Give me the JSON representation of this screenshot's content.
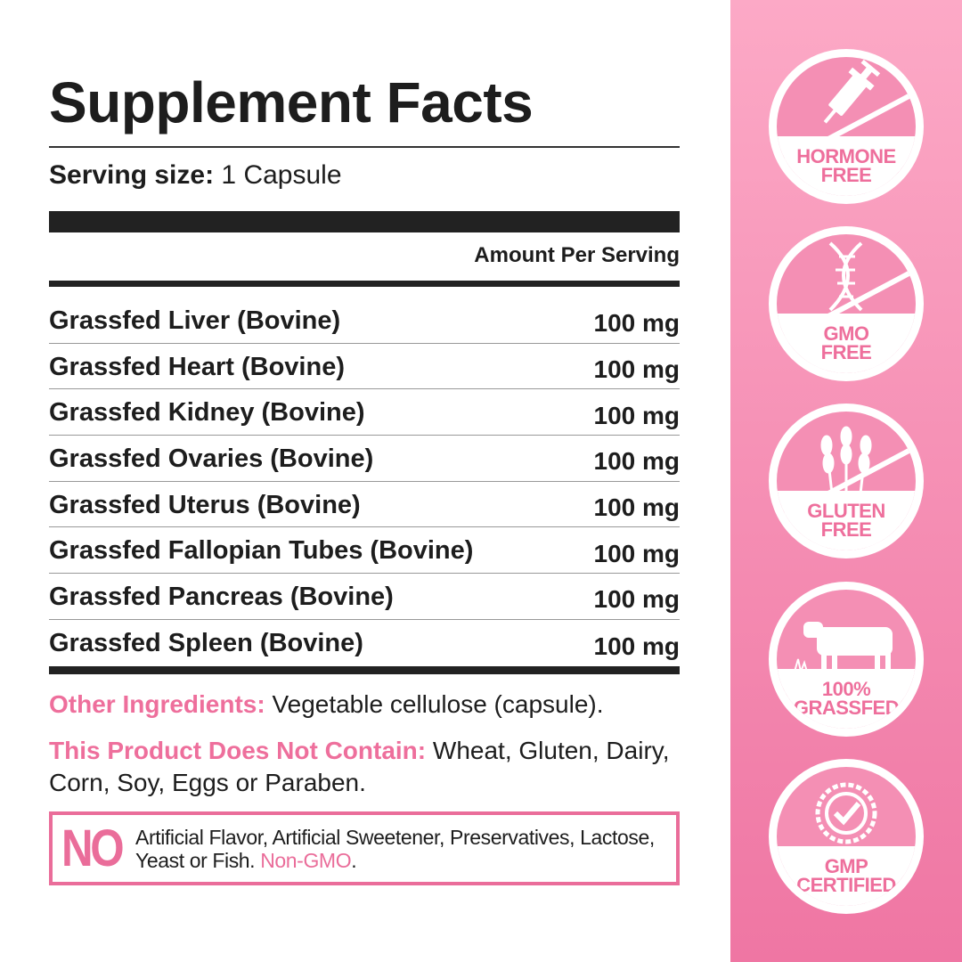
{
  "title": "Supplement Facts",
  "serving": {
    "label": "Serving size:",
    "value": "1 Capsule"
  },
  "amount_header": "Amount Per Serving",
  "ingredients": [
    {
      "name": "Grassfed Liver (Bovine)",
      "amount": "100 mg"
    },
    {
      "name": "Grassfed Heart (Bovine)",
      "amount": "100 mg"
    },
    {
      "name": "Grassfed Kidney (Bovine)",
      "amount": "100 mg"
    },
    {
      "name": "Grassfed Ovaries (Bovine)",
      "amount": "100 mg"
    },
    {
      "name": "Grassfed Uterus (Bovine)",
      "amount": "100 mg"
    },
    {
      "name": "Grassfed Fallopian Tubes (Bovine)",
      "amount": "100 mg"
    },
    {
      "name": "Grassfed Pancreas (Bovine)",
      "amount": "100 mg"
    },
    {
      "name": "Grassfed Spleen (Bovine)",
      "amount": "100 mg"
    }
  ],
  "other": {
    "label": "Other Ingredients:",
    "value": "Vegetable cellulose (capsule)."
  },
  "contain": {
    "label": "This Product Does Not Contain:",
    "value": "Wheat, Gluten, Dairy, Corn, Soy, Eggs or Paraben."
  },
  "no_box": {
    "no": "NO",
    "text": "Artificial Flavor, Artificial Sweetener, Preservatives, Lactose, Yeast or Fish.",
    "highlight": "Non-GMO",
    "end": "."
  },
  "badges": [
    {
      "line1": "HORMONE",
      "line2": "FREE",
      "icon": "syringe-icon"
    },
    {
      "line1": "GMO",
      "line2": "FREE",
      "icon": "dna-icon"
    },
    {
      "line1": "GLUTEN",
      "line2": "FREE",
      "icon": "wheat-icon"
    },
    {
      "line1": "100%",
      "line2": "GRASSFED",
      "icon": "cow-icon"
    },
    {
      "line1": "GMP",
      "line2": "CERTIFIED",
      "icon": "check-seal-icon"
    }
  ],
  "colors": {
    "accent": "#ee6f9c",
    "panel_top": "#fca9c6",
    "panel_bottom": "#ef76a3",
    "text": "#1d1d1d"
  }
}
